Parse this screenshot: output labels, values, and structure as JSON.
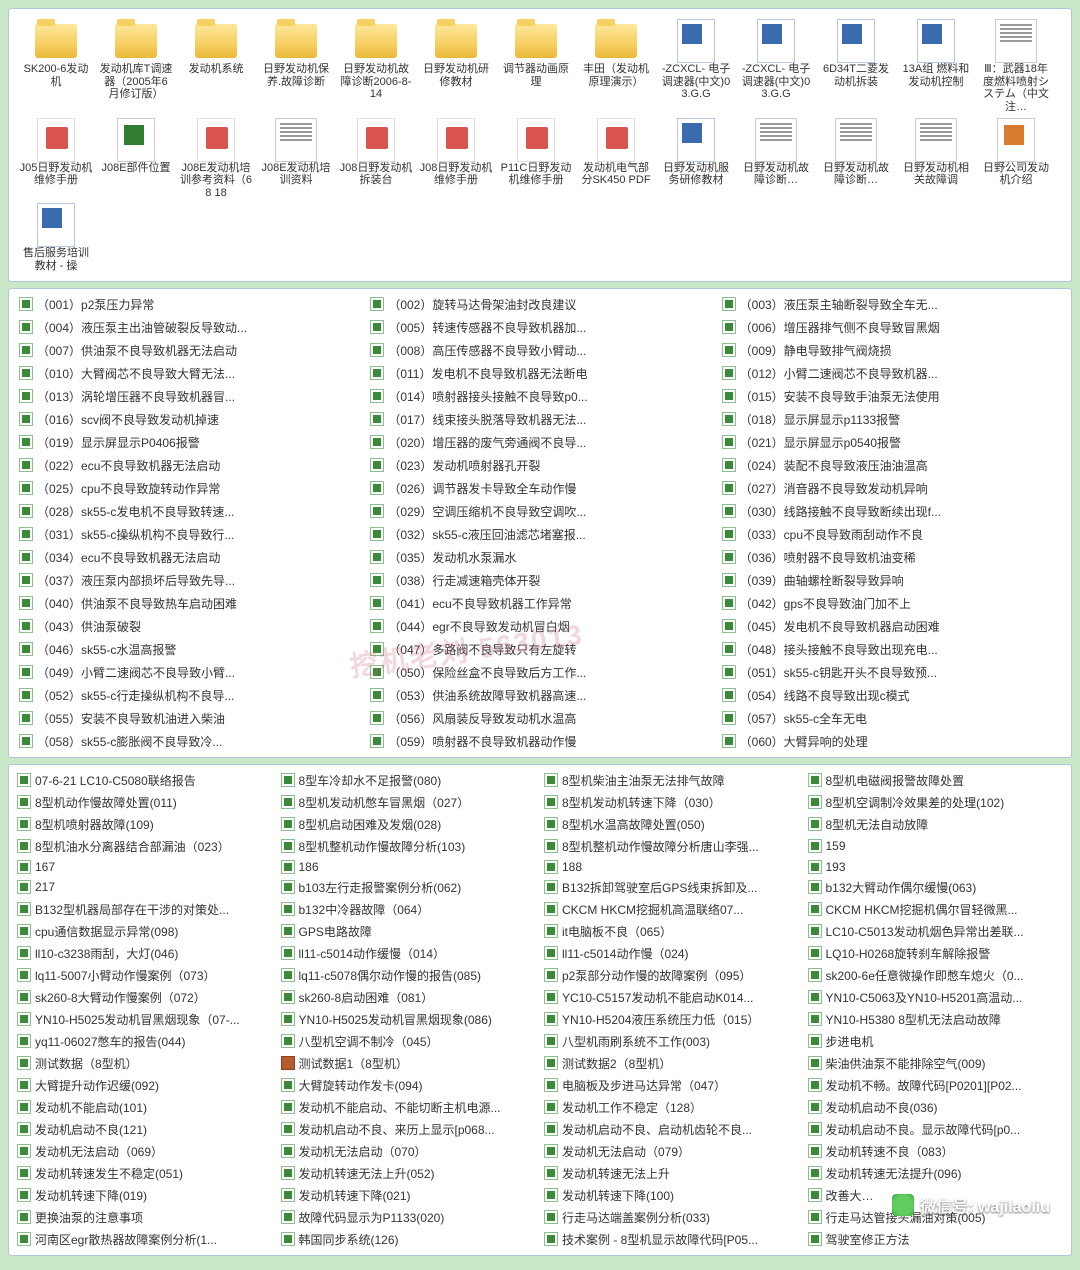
{
  "watermark": "挖机老刘 563013",
  "wx_text": "微信号: wajilaoliu",
  "folder_rows": [
    [
      {
        "t": "folder",
        "l": "SK200-6发动机"
      },
      {
        "t": "folder",
        "l": "发动机库T调速器（2005年6月修订版）"
      },
      {
        "t": "folder",
        "l": "发动机系统"
      },
      {
        "t": "folder",
        "l": "日野发动机保养.故障诊断"
      },
      {
        "t": "folder",
        "l": "日野发动机故障诊断2006-8-14"
      },
      {
        "t": "folder",
        "l": "日野发动机研修教材"
      },
      {
        "t": "folder",
        "l": "调节器动画原理"
      },
      {
        "t": "folder",
        "l": "丰田（发动机原理演示）"
      },
      {
        "t": "word",
        "l": "-ZCXCL- 电子调速器(中文)03.G.G"
      },
      {
        "t": "word",
        "l": "-ZCXCL- 电子调速器(中文)03.G.G"
      },
      {
        "t": "word",
        "l": "6D34T二菱发动机拆装"
      }
    ],
    [
      {
        "t": "word",
        "l": "13A组 燃料和发动机控制"
      },
      {
        "t": "doc",
        "l": "Ⅲ：武器18年度燃料喷射システム（中文注…"
      },
      {
        "t": "pdf",
        "l": "J05日野发动机维修手册"
      },
      {
        "t": "xls",
        "l": "J08E部件位置"
      },
      {
        "t": "pdf",
        "l": "J08E发动机培训参考资料（6 8 18"
      },
      {
        "t": "doc",
        "l": "J08E发动机培训资料"
      },
      {
        "t": "pdf",
        "l": "J08日野发动机拆装台"
      },
      {
        "t": "pdf",
        "l": "J08日野发动机维修手册"
      },
      {
        "t": "pdf",
        "l": "P11C日野发动机维修手册"
      },
      {
        "t": "pdf",
        "l": "发动机电气部分SK450 PDF"
      },
      {
        "t": "word",
        "l": "日野发动机服务研修教材"
      }
    ],
    [
      {
        "t": "doc",
        "l": "日野发动机故障诊断…"
      },
      {
        "t": "doc",
        "l": "日野发动机故障诊断…"
      },
      {
        "t": "doc",
        "l": "日野发动机相关故障调"
      },
      {
        "t": "ppt",
        "l": "日野公司发动机介绍"
      },
      {
        "t": "word",
        "l": "售后服务培训教材 - 操"
      }
    ]
  ],
  "list3": [
    [
      "（001）p2泵压力异常",
      "（002）旋转马达骨架油封改良建议",
      "（003）液压泵主轴断裂导致全车无..."
    ],
    [
      "（004）液压泵主出油管破裂反导致动...",
      "（005）转速传感器不良导致机器加...",
      "（006）增压器排气侧不良导致冒黑烟"
    ],
    [
      "（007）供油泵不良导致机器无法启动",
      "（008）高压传感器不良导致小臂动...",
      "（009）静电导致排气阀烧损"
    ],
    [
      "（010）大臂阀芯不良导致大臂无法...",
      "（011）发电机不良导致机器无法断电",
      "（012）小臂二速阀芯不良导致机器..."
    ],
    [
      "（013）涡轮增压器不良导致机器冒...",
      "（014）喷射器接头接触不良导致p0...",
      "（015）安装不良导致手油泵无法使用"
    ],
    [
      "（016）scv阀不良导致发动机掉速",
      "（017）线束接头脱落导致机器无法...",
      "（018）显示屏显示p1133报警"
    ],
    [
      "（019）显示屏显示P0406报警",
      "（020）增压器的废气旁通阀不良导...",
      "（021）显示屏显示p0540报警"
    ],
    [
      "（022）ecu不良导致机器无法启动",
      "（023）发动机喷射器孔开裂",
      "（024）装配不良导致液压油油温高"
    ],
    [
      "（025）cpu不良导致旋转动作异常",
      "（026）调节器发卡导致全车动作慢",
      "（027）消音器不良导致发动机异响"
    ],
    [
      "（028）sk55-c发电机不良导致转速...",
      "（029）空调压缩机不良导致空调吹...",
      "（030）线路接触不良导致断续出现f..."
    ],
    [
      "（031）sk55-c操纵机构不良导致行...",
      "（032）sk55-c液压回油滤芯堵塞报...",
      "（033）cpu不良导致雨刮动作不良"
    ],
    [
      "（034）ecu不良导致机器无法启动",
      "（035）发动机水泵漏水",
      "（036）喷射器不良导致机油变稀"
    ],
    [
      "（037）液压泵内部损坏后导致先导...",
      "（038）行走减速箱壳体开裂",
      "（039）曲轴螺栓断裂导致异响"
    ],
    [
      "（040）供油泵不良导致热车启动困难",
      "（041）ecu不良导致机器工作异常",
      "（042）gps不良导致油门加不上"
    ],
    [
      "（043）供油泵破裂",
      "（044）egr不良导致发动机冒白烟",
      "（045）发电机不良导致机器启动困难"
    ],
    [
      "（046）sk55-c水温高报警",
      "（047）多路阀不良导致只有左旋转",
      "（048）接头接触不良导致出现充电..."
    ],
    [
      "（049）小臂二速阀芯不良导致小臂...",
      "（050）保险丝盒不良导致后方工作...",
      "（051）sk55-c钥匙开头不良导致预..."
    ],
    [
      "（052）sk55-c行走操纵机构不良导...",
      "（053）供油系统故障导致机器高速...",
      "（054）线路不良导致出现c模式"
    ],
    [
      "（055）安装不良导致机油进入柴油",
      "（056）风扇装反导致发动机水温高",
      "（057）sk55-c全车无电"
    ],
    [
      "（058）sk55-c膨胀阀不良导致冷...",
      "（059）喷射器不良导致机器动作慢",
      "（060）大臂异响的处理"
    ]
  ],
  "list4": [
    [
      "07-6-21  LC10-C5080联络报告",
      "8型车冷却水不足报警(080)",
      "8型机柴油主油泵无法排气故障",
      "8型机电磁阀报警故障处置"
    ],
    [
      "8型机动作慢故障处置(011)",
      "8型机发动机憋车冒黑烟（027）",
      "8型机发动机转速下降（030）",
      "8型机空调制冷效果差的处理(102)"
    ],
    [
      "8型机喷射器故障(109)",
      "8型机启动困难及发烟(028)",
      "8型机水温高故障处置(050)",
      "8型机无法自动放障"
    ],
    [
      "8型机油水分离器结合部漏油（023）",
      "8型机整机动作慢故障分析(103)",
      "8型机整机动作慢故障分析唐山李强...",
      "159"
    ],
    [
      "167",
      "186",
      "188",
      "193"
    ],
    [
      "217",
      "b103左行走报警案例分析(062)",
      "B132拆卸驾驶室后GPS线束拆卸及...",
      "b132大臂动作偶尔缓慢(063)"
    ],
    [
      "B132型机器局部存在干涉的对策处...",
      "b132中冷器故障（064）",
      "CKCM  HKCM挖掘机高温联络07...",
      "CKCM  HKCM挖掘机偶尔冒轻微黑..."
    ],
    [
      "cpu通信数据显示异常(098)",
      "GPS电路故障",
      "it电脑板不良（065）",
      "LC10-C5013发动机烟色异常出差联..."
    ],
    [
      "ll10-c3238雨刮，大灯(046)",
      "ll11-c5014动作缓慢（014）",
      "ll11-c5014动作慢（024)",
      "LQ10-H0268旋转刹车解除报警"
    ],
    [
      "lq11-5007小臂动作慢案例（073）",
      "lq11-c5078偶尔动作慢的报告(085)",
      "p2泵部分动作慢的故障案例（095）",
      "sk200-6e任意微操作即憋车熄火（0..."
    ],
    [
      "sk260-8大臂动作慢案例（072）",
      "sk260-8启动困难（081）",
      "YC10-C5157发动机不能启动K014...",
      "YN10-C5063及YN10-H5201高温动..."
    ],
    [
      "YN10-H5025发动机冒黑烟现象（07-...",
      "YN10-H5025发动机冒黑烟现象(086)",
      "YN10-H5204液压系统压力低（015）",
      "YN10-H5380  8型机无法启动故障"
    ],
    [
      "yq11-06027憋车的报告(044)",
      "八型机空调不制冷（045）",
      "八型机雨刷系统不工作(003)",
      "步进电机"
    ],
    [
      "测试数据（8型机）",
      "测试数据1（8型机）",
      "测试数据2（8型机）",
      "柴油供油泵不能排除空气(009)"
    ],
    [
      "大臂提升动作迟缓(092)",
      "大臂旋转动作发卡(094)",
      "电脑板及步进马达异常（047）",
      "发动机不畅。故障代码[P0201][P02..."
    ],
    [
      "发动机不能启动(101)",
      "发动机不能启动、不能切断主机电源...",
      "发动机工作不稳定（128）",
      "发动机启动不良(036)"
    ],
    [
      "发动机启动不良(121)",
      "发动机启动不良、来历上显示[p068...",
      "发动机启动不良、启动机齿轮不良...",
      "发动机启动不良。显示故障代码[p0..."
    ],
    [
      "发动机无法启动（069）",
      "发动机无法启动（070）",
      "发动机无法启动（079）",
      "发动机转速不良（083）"
    ],
    [
      "发动机转速发生不稳定(051)",
      "发动机转速无法上升(052)",
      "发动机转速无法上升",
      "发动机转速无法提升(096)"
    ],
    [
      "发动机转速下降(019)",
      "发动机转速下降(021)",
      "发动机转速下降(100)",
      "改善大…"
    ],
    [
      "更换油泵的注意事项",
      "故障代码显示为P1133(020)",
      "行走马达端盖案例分析(033)",
      "行走马达管接头漏油对策(005)"
    ],
    [
      "河南区egr散热器故障案例分析(1...",
      "韩国同步系统(126)",
      "技术案例 - 8型机显示故障代码[P05...",
      "驾驶室修正方法"
    ]
  ]
}
